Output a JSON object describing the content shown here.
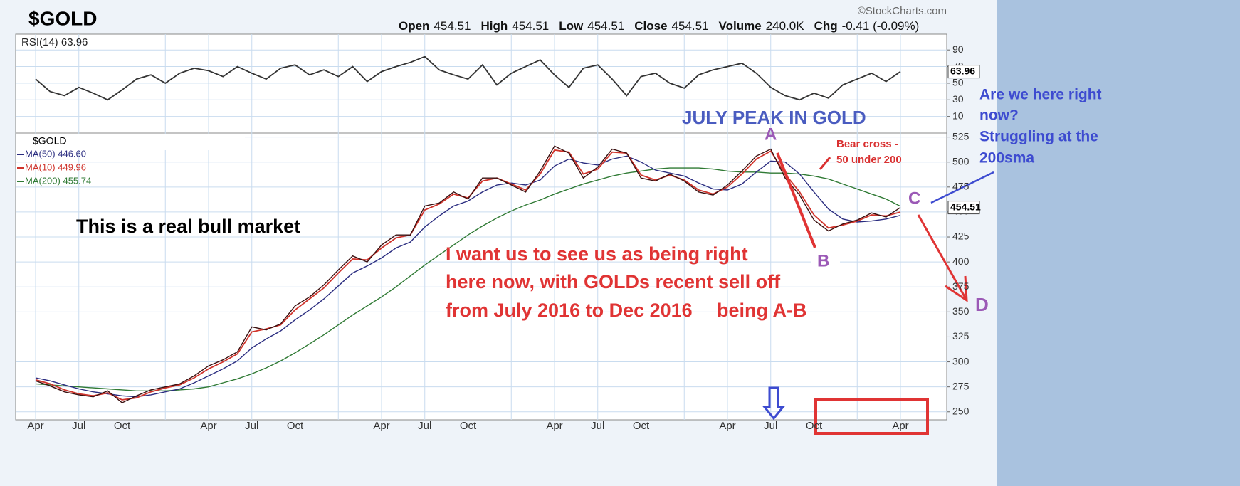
{
  "header": {
    "title": "$GOLD",
    "source": "©StockCharts.com",
    "quote": [
      {
        "label": "Open",
        "value": "454.51"
      },
      {
        "label": "High",
        "value": "454.51"
      },
      {
        "label": "Low",
        "value": "454.51"
      },
      {
        "label": "Close",
        "value": "454.51"
      },
      {
        "label": "Volume",
        "value": "240.0K"
      },
      {
        "label": "Chg",
        "value": "-0.41 (-0.09%)"
      }
    ]
  },
  "chart_data": [
    {
      "type": "line",
      "title": "RSI(14) 63.96",
      "ylim": [
        -10,
        109
      ],
      "yticks": [
        10,
        30,
        50,
        70,
        90
      ],
      "grid": true,
      "series": [
        {
          "color": "#333333",
          "values": [
            55,
            40,
            35,
            45,
            38,
            30,
            42,
            55,
            60,
            50,
            62,
            68,
            65,
            58,
            70,
            62,
            55,
            68,
            72,
            60,
            66,
            58,
            70,
            52,
            64,
            70,
            75,
            82,
            66,
            60,
            55,
            72,
            48,
            62,
            70,
            78,
            60,
            45,
            68,
            72,
            55,
            35,
            58,
            62,
            50,
            44,
            60,
            66,
            70,
            74,
            62,
            45,
            35,
            30,
            38,
            32,
            48,
            55,
            62,
            52,
            63.96
          ]
        }
      ]
    },
    {
      "type": "line",
      "title": "$GOLD",
      "ylim": [
        242,
        529
      ],
      "yticks": [
        250,
        275,
        300,
        325,
        350,
        375,
        400,
        425,
        450,
        475,
        500,
        525
      ],
      "grid": true,
      "categories": [
        "Apr",
        null,
        null,
        "Jul",
        null,
        null,
        "Oct",
        null,
        null,
        null,
        null,
        null,
        "Apr",
        null,
        null,
        "Jul",
        null,
        null,
        "Oct",
        null,
        null,
        null,
        null,
        null,
        "Apr",
        null,
        null,
        "Jul",
        null,
        null,
        "Oct",
        null,
        null,
        null,
        null,
        null,
        "Apr",
        null,
        null,
        "Jul",
        null,
        null,
        "Oct",
        null,
        null,
        null,
        null,
        null,
        "Apr",
        null,
        null,
        "Jul",
        null,
        null,
        "Oct",
        null,
        null,
        null,
        null,
        null,
        "Apr"
      ],
      "series": [
        {
          "name": "MA(200) 455.74",
          "color": "#2f7a34",
          "values": [
            278,
            277,
            276,
            275,
            274,
            273,
            272,
            271,
            271,
            271,
            272,
            273,
            275,
            279,
            283,
            288,
            294,
            301,
            309,
            318,
            327,
            337,
            347,
            356,
            365,
            375,
            386,
            397,
            407,
            417,
            427,
            436,
            444,
            451,
            457,
            462,
            468,
            473,
            478,
            482,
            486,
            489,
            491,
            493,
            494,
            494,
            494,
            493,
            491,
            490,
            490,
            489,
            489,
            488,
            486,
            483,
            478,
            473,
            468,
            463,
            455.74
          ]
        },
        {
          "name": "MA(50) 446.60",
          "color": "#2b2d80",
          "values": [
            284,
            281,
            277,
            273,
            270,
            268,
            266,
            265,
            267,
            270,
            273,
            279,
            286,
            293,
            301,
            314,
            323,
            331,
            342,
            352,
            363,
            376,
            389,
            396,
            404,
            414,
            420,
            435,
            446,
            456,
            461,
            470,
            477,
            479,
            477,
            482,
            496,
            503,
            499,
            497,
            503,
            506,
            500,
            492,
            489,
            486,
            479,
            473,
            472,
            478,
            490,
            501,
            500,
            488,
            470,
            453,
            443,
            440,
            441,
            443,
            446.6
          ]
        },
        {
          "name": "MA(10) 449.96",
          "color": "#d0342c",
          "values": [
            282,
            278,
            272,
            268,
            266,
            269,
            262,
            264,
            270,
            274,
            277,
            284,
            293,
            300,
            308,
            330,
            333,
            337,
            352,
            363,
            374,
            389,
            403,
            402,
            414,
            424,
            427,
            452,
            458,
            468,
            464,
            481,
            484,
            478,
            472,
            488,
            512,
            510,
            488,
            493,
            510,
            509,
            487,
            482,
            487,
            482,
            472,
            468,
            475,
            488,
            503,
            511,
            488,
            470,
            447,
            434,
            437,
            441,
            447,
            446,
            449.96
          ]
        },
        {
          "name": "$GOLD",
          "color": "#3a1010",
          "values": [
            281,
            276,
            270,
            267,
            265,
            271,
            259,
            266,
            272,
            275,
            278,
            286,
            296,
            302,
            310,
            335,
            332,
            338,
            356,
            365,
            377,
            392,
            406,
            400,
            417,
            427,
            427,
            456,
            459,
            470,
            463,
            484,
            484,
            477,
            470,
            491,
            516,
            509,
            484,
            495,
            513,
            509,
            484,
            481,
            488,
            481,
            470,
            467,
            477,
            491,
            506,
            513,
            484,
            467,
            442,
            431,
            438,
            442,
            449,
            445,
            454.51
          ]
        }
      ]
    }
  ],
  "annotations": [
    "JULY PEAK IN GOLD",
    "A",
    "B",
    "C",
    "D",
    "Bear cross -",
    "50 under 200",
    "This is a real bull market",
    "I want us to see us as being right",
    "here now, with GOLDs recent sell off",
    "from July 2016 to Dec 2016",
    "being A-B",
    "Are we here right",
    "now?",
    "Struggling at the",
    "200sma"
  ]
}
